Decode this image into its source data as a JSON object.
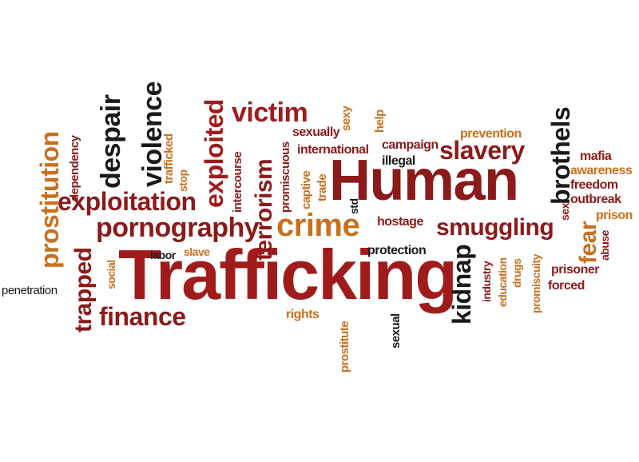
{
  "colors": {
    "dark_red": "#8b1a1a",
    "red": "#a01c1c",
    "maroon": "#7a1515",
    "orange": "#c8701e",
    "gold": "#d59a2a",
    "black": "#1a1a1a"
  },
  "words": {
    "trafficking": "Trafficking",
    "human": "Human",
    "crime": "crime",
    "pornography": "pornography",
    "exploitation": "exploitation",
    "prostitution": "prostitution",
    "slavery": "slavery",
    "smuggling": "smuggling",
    "victim": "victim",
    "violence": "violence",
    "despair": "despair",
    "exploited": "exploited",
    "terrorism": "terrorism",
    "brothels": "brothels",
    "kidnap": "kidnap",
    "finance": "finance",
    "trapped": "trapped",
    "fear": "fear",
    "dependency": "dependency",
    "trafficked": "trafficked",
    "stop": "stop",
    "intercourse": "intercourse",
    "promiscuous": "promiscuous",
    "captive": "captive",
    "trade": "trade",
    "std": "std",
    "sexually": "sexually",
    "sexy": "sexy",
    "international": "international",
    "help": "help",
    "campaign": "campaign",
    "illegal": "illegal",
    "prevention": "prevention",
    "mafia": "mafia",
    "awareness": "awareness",
    "freedom": "freedom",
    "outbreak": "outbreak",
    "sex": "sex",
    "prison": "prison",
    "abuse": "abuse",
    "prisoner": "prisoner",
    "forced": "forced",
    "promiscuity": "promiscuity",
    "drugs": "drugs",
    "education": "education",
    "industry": "industry",
    "hostage": "hostage",
    "protection": "protection",
    "labor": "labor",
    "slave": "slave",
    "social": "social",
    "penetration": "penetration",
    "rights": "rights",
    "prostitute": "prostitute",
    "sexual": "sexual"
  }
}
